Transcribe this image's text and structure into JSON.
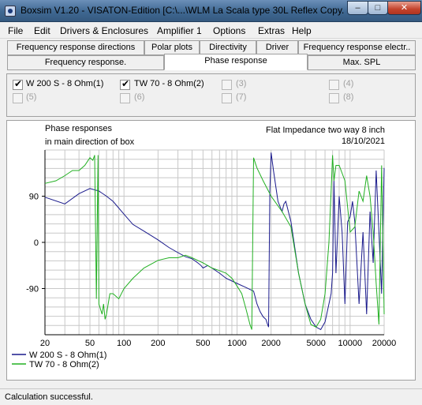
{
  "window": {
    "title": "Boxsim V1.20 - VISATON-Edition [C:\\...\\WLM La Scala type 30L Reflex Copy....",
    "minimize_glyph": "–",
    "maximize_glyph": "□",
    "close_glyph": "✕"
  },
  "menu": [
    "File",
    "Edit",
    "Drivers & Enclosures",
    "Amplifier 1",
    "Options",
    "Extras",
    "Help"
  ],
  "tabs_row1": [
    "Frequency response directions",
    "Polar plots",
    "Directivity",
    "Driver",
    "Frequency response electr.."
  ],
  "tabs_row2": [
    "Frequency response.",
    "Phase response",
    "Max. SPL"
  ],
  "active_tab": "Phase response",
  "legend_checks": [
    {
      "label": "W 200 S - 8 Ohm(1)",
      "checked": true,
      "enabled": true
    },
    {
      "label": "TW 70 - 8 Ohm(2)",
      "checked": true,
      "enabled": true
    },
    {
      "label": "(3)",
      "checked": false,
      "enabled": false
    },
    {
      "label": "(4)",
      "checked": false,
      "enabled": false
    },
    {
      "label": "(5)",
      "checked": false,
      "enabled": false
    },
    {
      "label": "(6)",
      "checked": false,
      "enabled": false
    },
    {
      "label": "(7)",
      "checked": false,
      "enabled": false
    },
    {
      "label": "(8)",
      "checked": false,
      "enabled": false
    }
  ],
  "check_mark": "✔",
  "plot": {
    "title_line1": "Phase responses",
    "title_line2": "in main direction of box",
    "info_line1": "Flat Impedance two way 8 inch",
    "info_line2": "18/10/2021"
  },
  "colors": {
    "series1": "#1a1a8c",
    "series2": "#22b022",
    "grid": "#c8c8c8",
    "axis": "#000000"
  },
  "chart_data": {
    "type": "line",
    "title": "Phase responses",
    "subtitle": "in main direction of box",
    "x_scale": "log",
    "xlim": [
      20,
      20000
    ],
    "ylim": [
      -180,
      180
    ],
    "x_ticks": [
      20,
      50,
      100,
      200,
      500,
      1000,
      2000,
      5000,
      10000,
      20000
    ],
    "x_tick_labels": [
      "20",
      "50",
      "100",
      "200",
      "500",
      "1000",
      "2000",
      "5000",
      "10000",
      "20000"
    ],
    "y_ticks": [
      90,
      0,
      -90
    ],
    "y_tick_labels": [
      "90",
      "0",
      "-90"
    ],
    "grid": true,
    "legend_position": "bottom-left",
    "series": [
      {
        "name": "W 200 S - 8 Ohm(1)",
        "color": "#1a1a8c",
        "x": [
          20,
          30,
          40,
          50,
          60,
          70,
          80,
          100,
          120,
          150,
          200,
          250,
          300,
          350,
          400,
          450,
          480,
          500,
          550,
          600,
          700,
          800,
          1000,
          1200,
          1400,
          1500,
          1600,
          1700,
          1800,
          1850,
          1900,
          1950,
          2000,
          2100,
          2300,
          2500,
          2600,
          2700,
          3000,
          3500,
          4000,
          4500,
          5000,
          5500,
          6000,
          6500,
          6800,
          7000,
          7200,
          7500,
          8000,
          8500,
          9000,
          9500,
          10000,
          10500,
          11000,
          12000,
          13000,
          14000,
          15000,
          16000,
          17000,
          18000,
          19000,
          20000
        ],
        "y": [
          88,
          75,
          95,
          105,
          100,
          90,
          80,
          55,
          35,
          22,
          5,
          -10,
          -20,
          -28,
          -32,
          -40,
          -45,
          -50,
          -45,
          -50,
          -60,
          -70,
          -80,
          -88,
          -95,
          -120,
          -135,
          -145,
          -150,
          -158,
          -165,
          100,
          175,
          140,
          80,
          60,
          75,
          80,
          40,
          -60,
          -120,
          -150,
          -165,
          -170,
          -155,
          -120,
          -100,
          -60,
          120,
          -60,
          90,
          20,
          -120,
          40,
          50,
          80,
          40,
          -120,
          20,
          -140,
          60,
          -40,
          140,
          20,
          -100,
          145
        ]
      },
      {
        "name": "TW 70 - 8 Ohm(2)",
        "color": "#22b022",
        "x": [
          20,
          25,
          30,
          35,
          40,
          45,
          50,
          53,
          55,
          57,
          59,
          60,
          62,
          64,
          66,
          68,
          70,
          75,
          80,
          90,
          100,
          120,
          150,
          200,
          250,
          300,
          350,
          400,
          500,
          600,
          700,
          800,
          900,
          1000,
          1100,
          1200,
          1300,
          1350,
          1400,
          1450,
          1500,
          1700,
          2000,
          2500,
          3000,
          3500,
          4000,
          4500,
          5000,
          5500,
          6000,
          6500,
          6800,
          7000,
          7200,
          7500,
          8000,
          9000,
          10000,
          11000,
          12000,
          13000,
          14000,
          15000,
          16000,
          17000,
          18000,
          19000,
          20000
        ],
        "y": [
          115,
          120,
          130,
          140,
          140,
          150,
          165,
          160,
          170,
          -110,
          170,
          -120,
          -130,
          -140,
          -120,
          -150,
          -140,
          -100,
          -100,
          -110,
          -90,
          -70,
          -50,
          -35,
          -30,
          -30,
          -25,
          -30,
          -40,
          -50,
          -55,
          -60,
          -70,
          -85,
          -100,
          -130,
          -160,
          -170,
          165,
          155,
          145,
          120,
          90,
          60,
          30,
          -60,
          -120,
          -160,
          -165,
          -150,
          -100,
          0,
          100,
          170,
          120,
          150,
          150,
          120,
          20,
          30,
          100,
          80,
          130,
          90,
          20,
          -80,
          -160,
          150,
          -140
        ]
      }
    ]
  },
  "status": "Calculation successful."
}
